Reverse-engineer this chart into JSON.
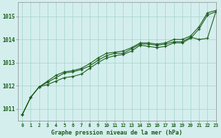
{
  "title": "Graphe pression niveau de la mer (hPa)",
  "bg_color": "#d4eeee",
  "grid_color": "#a8d8cc",
  "line_color": "#1a5c1a",
  "marker_color": "#1a5c1a",
  "xlim": [
    -0.5,
    23
  ],
  "ylim": [
    1010.5,
    1015.6
  ],
  "yticks": [
    1011,
    1012,
    1013,
    1014,
    1015
  ],
  "xticks": [
    0,
    1,
    2,
    3,
    4,
    5,
    6,
    7,
    8,
    9,
    10,
    11,
    12,
    13,
    14,
    15,
    16,
    17,
    18,
    19,
    20,
    21,
    22,
    23
  ],
  "series1": [
    1010.75,
    1011.5,
    1011.95,
    1012.05,
    1012.2,
    1012.35,
    1012.4,
    1012.5,
    1012.75,
    1013.0,
    1013.2,
    1013.3,
    1013.35,
    1013.5,
    1013.75,
    1013.7,
    1013.65,
    1013.7,
    1013.85,
    1013.85,
    1014.05,
    1014.45,
    1015.05,
    1015.2
  ],
  "series2": [
    1010.75,
    1011.5,
    1011.95,
    1012.15,
    1012.35,
    1012.55,
    1012.6,
    1012.7,
    1012.85,
    1013.1,
    1013.3,
    1013.4,
    1013.4,
    1013.6,
    1013.8,
    1013.8,
    1013.75,
    1013.8,
    1013.9,
    1013.9,
    1014.1,
    1014.0,
    1014.05,
    1015.2
  ],
  "series3": [
    1010.75,
    1011.5,
    1011.95,
    1012.2,
    1012.45,
    1012.6,
    1012.65,
    1012.75,
    1012.95,
    1013.2,
    1013.4,
    1013.45,
    1013.5,
    1013.65,
    1013.85,
    1013.85,
    1013.8,
    1013.85,
    1014.0,
    1014.0,
    1014.15,
    1014.55,
    1015.15,
    1015.25
  ]
}
